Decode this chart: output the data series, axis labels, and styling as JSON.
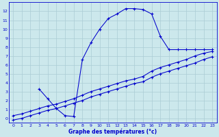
{
  "title": "Graphe des températures (°c)",
  "background_color": "#cce8ec",
  "grid_color": "#aaccd4",
  "line_color": "#0000cc",
  "xlim": [
    -0.5,
    23.5
  ],
  "ylim": [
    -0.5,
    13
  ],
  "xticks": [
    0,
    1,
    2,
    3,
    4,
    5,
    6,
    7,
    8,
    9,
    10,
    11,
    12,
    13,
    14,
    15,
    16,
    17,
    18,
    19,
    20,
    21,
    22,
    23
  ],
  "yticks": [
    0,
    1,
    2,
    3,
    4,
    5,
    6,
    7,
    8,
    9,
    10,
    11,
    12
  ],
  "line1_x": [
    3,
    4,
    5,
    6,
    7,
    8,
    9,
    10,
    11,
    12,
    13,
    14,
    15,
    16,
    17,
    18,
    19,
    20,
    21,
    22,
    23
  ],
  "line1_y": [
    3.3,
    2.2,
    1.1,
    0.3,
    0.2,
    6.6,
    8.5,
    10.0,
    11.2,
    11.7,
    12.3,
    12.3,
    12.2,
    11.7,
    9.2,
    7.7,
    7.7,
    7.7,
    7.7,
    7.7,
    7.7
  ],
  "line2_x": [
    0,
    1,
    2,
    3,
    4,
    5,
    6,
    7,
    8,
    9,
    10,
    11,
    12,
    13,
    14,
    15,
    16,
    17,
    18,
    19,
    20,
    21,
    22,
    23
  ],
  "line2_y": [
    0.3,
    0.5,
    0.8,
    1.1,
    1.4,
    1.6,
    1.9,
    2.2,
    2.6,
    3.0,
    3.3,
    3.6,
    3.9,
    4.2,
    4.4,
    4.7,
    5.3,
    5.7,
    6.0,
    6.3,
    6.6,
    7.0,
    7.3,
    7.5
  ],
  "line3_x": [
    0,
    1,
    2,
    3,
    4,
    5,
    6,
    7,
    8,
    9,
    10,
    11,
    12,
    13,
    14,
    15,
    16,
    17,
    18,
    19,
    20,
    21,
    22,
    23
  ],
  "line3_y": [
    -0.2,
    0.0,
    0.3,
    0.6,
    0.9,
    1.1,
    1.4,
    1.7,
    2.0,
    2.4,
    2.7,
    3.0,
    3.3,
    3.6,
    3.9,
    4.1,
    4.6,
    5.0,
    5.3,
    5.6,
    5.9,
    6.2,
    6.6,
    6.9
  ]
}
